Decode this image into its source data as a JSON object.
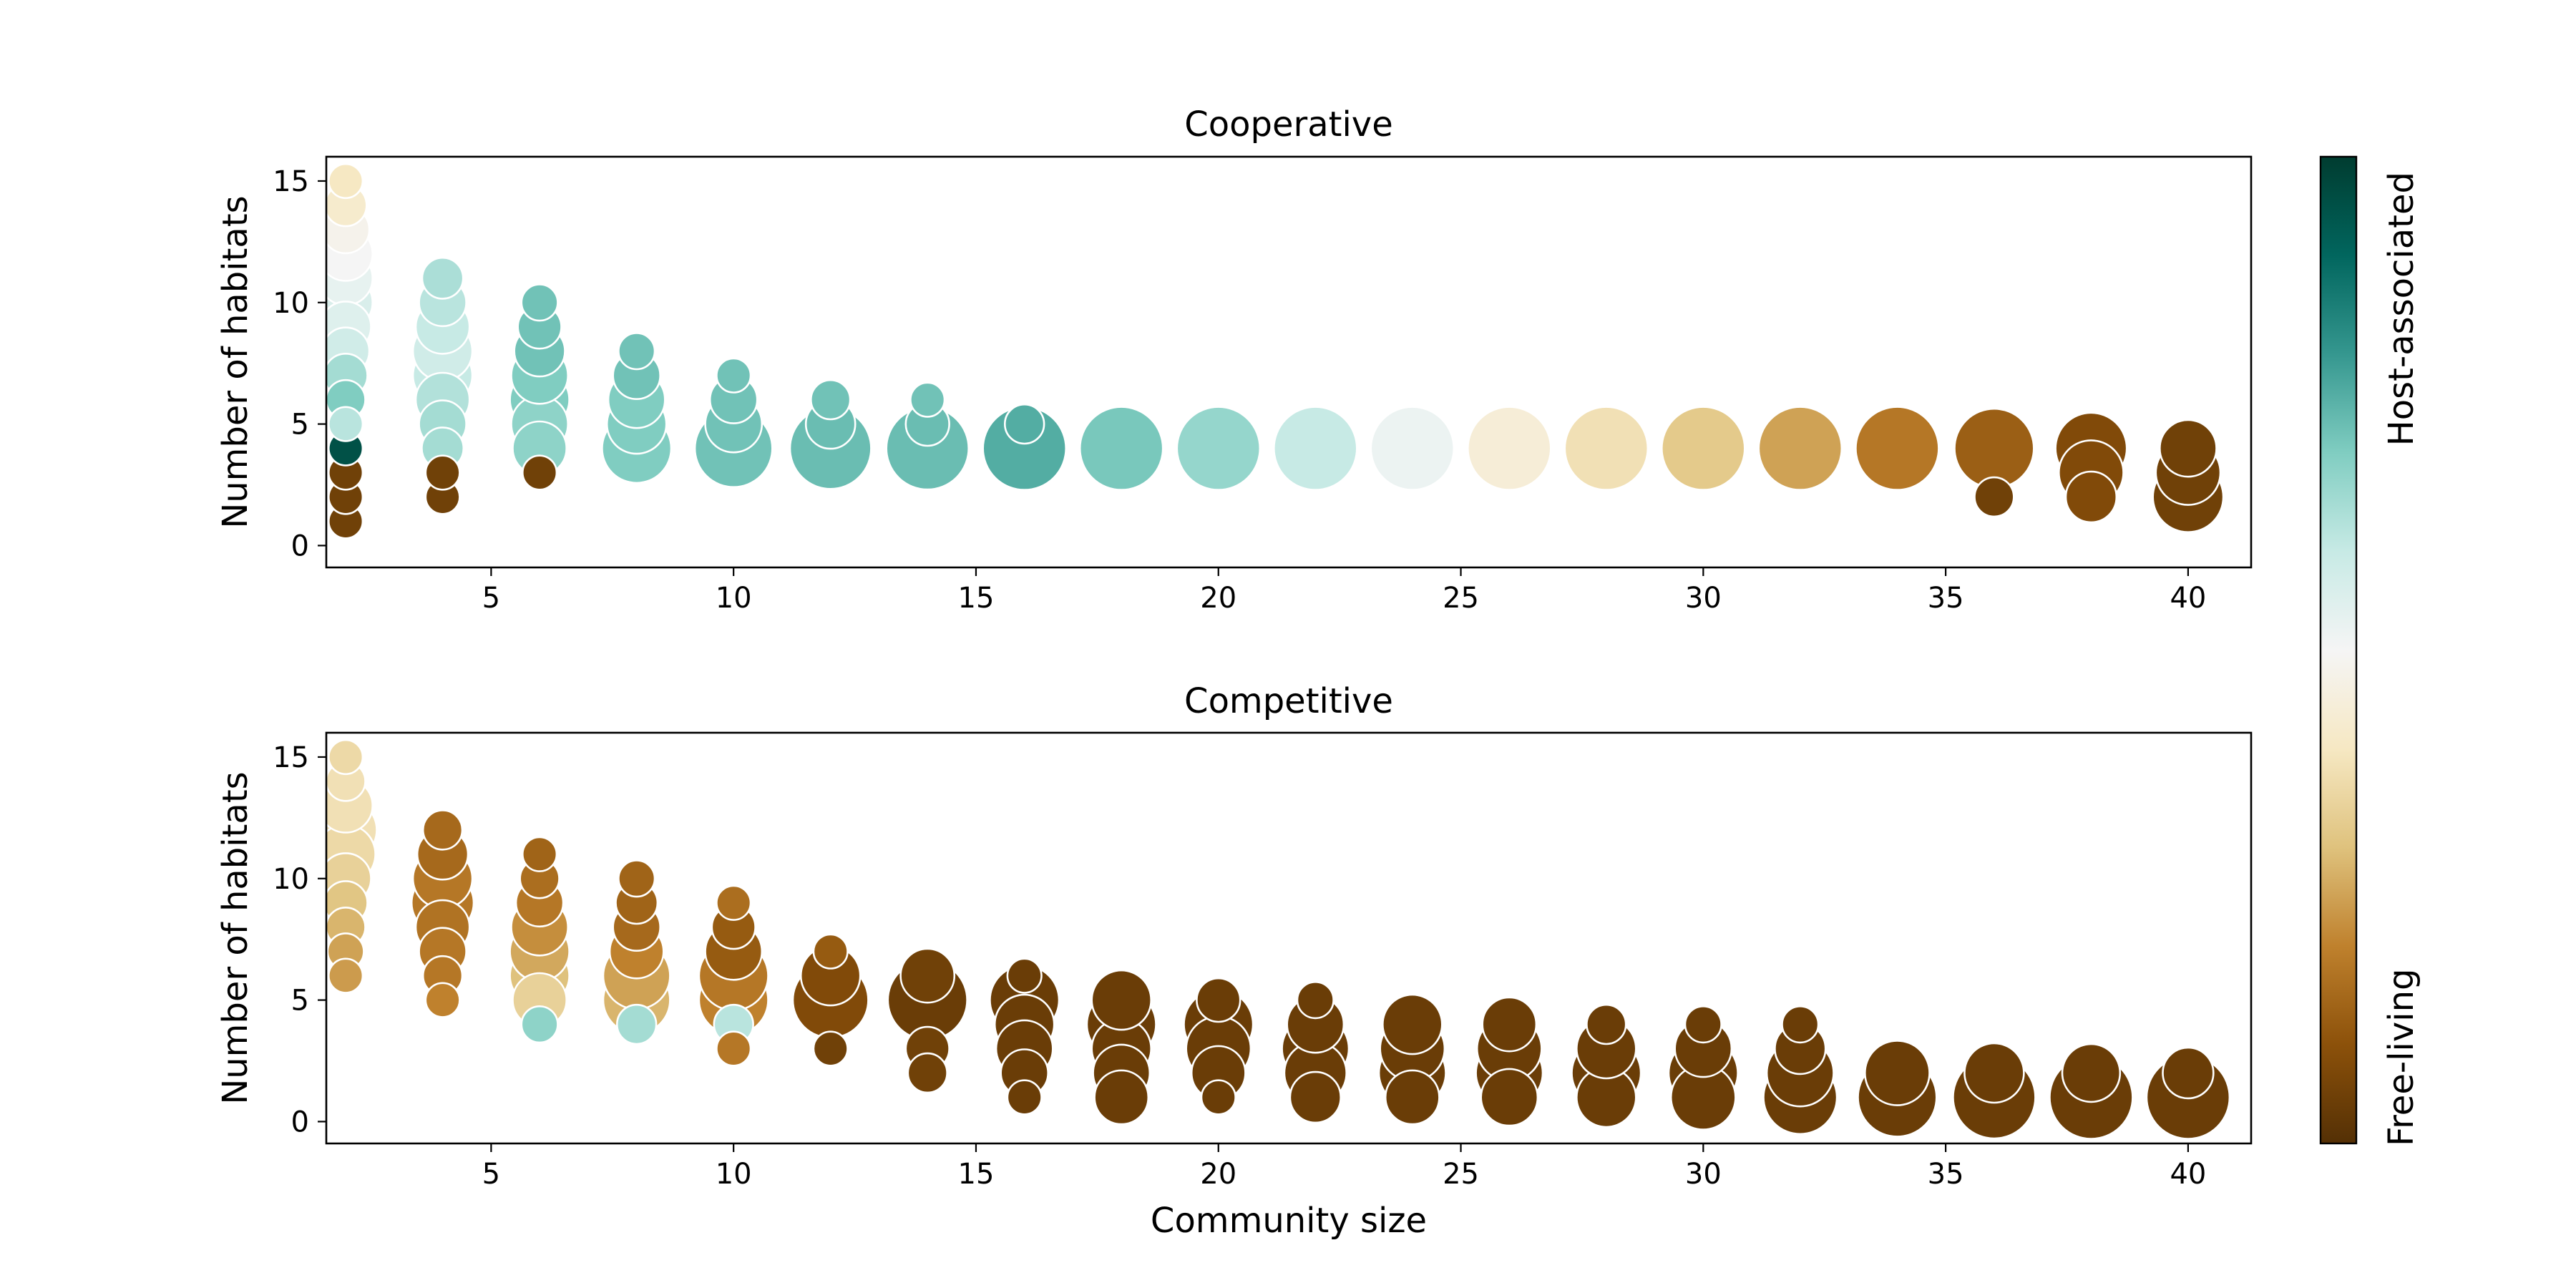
{
  "chart_data": {
    "type": "scatter",
    "xlabel": "Community size",
    "ylabel": "Number of habitats",
    "xlim": [
      1.6,
      41.3
    ],
    "ylim": [
      -0.9,
      16
    ],
    "xticks": [
      5,
      10,
      15,
      20,
      25,
      30,
      35,
      40
    ],
    "yticks": [
      0,
      5,
      10,
      15
    ],
    "colorbar": {
      "label_top": "Host-associated",
      "label_bottom": "Free-living",
      "colors": [
        "#543005",
        "#8c510a",
        "#bf812d",
        "#dfc27d",
        "#f6e8c3",
        "#f5f5f5",
        "#c7eae5",
        "#80cdc1",
        "#35978f",
        "#01665e",
        "#003c30"
      ]
    },
    "panels": [
      {
        "title": "Cooperative",
        "points": [
          {
            "x": 2,
            "y": 1,
            "s": 0.1,
            "c": 0.05
          },
          {
            "x": 2,
            "y": 2,
            "s": 0.1,
            "c": 0.05
          },
          {
            "x": 2,
            "y": 3,
            "s": 0.1,
            "c": 0.05
          },
          {
            "x": 2,
            "y": 4,
            "s": 0.1,
            "c": 0.95
          },
          {
            "x": 2,
            "y": 5,
            "s": 0.1,
            "c": 0.62
          },
          {
            "x": 2,
            "y": 6,
            "s": 0.15,
            "c": 0.7
          },
          {
            "x": 2,
            "y": 7,
            "s": 0.2,
            "c": 0.65
          },
          {
            "x": 2,
            "y": 8,
            "s": 0.25,
            "c": 0.58
          },
          {
            "x": 2,
            "y": 9,
            "s": 0.3,
            "c": 0.55
          },
          {
            "x": 2,
            "y": 10,
            "s": 0.35,
            "c": 0.56
          },
          {
            "x": 2,
            "y": 11,
            "s": 0.35,
            "c": 0.53
          },
          {
            "x": 2,
            "y": 12,
            "s": 0.35,
            "c": 0.5
          },
          {
            "x": 2,
            "y": 13,
            "s": 0.25,
            "c": 0.48
          },
          {
            "x": 2,
            "y": 14,
            "s": 0.18,
            "c": 0.42
          },
          {
            "x": 2,
            "y": 15,
            "s": 0.1,
            "c": 0.4
          },
          {
            "x": 4,
            "y": 2,
            "s": 0.1,
            "c": 0.05
          },
          {
            "x": 4,
            "y": 3,
            "s": 0.1,
            "c": 0.05
          },
          {
            "x": 4,
            "y": 4,
            "s": 0.18,
            "c": 0.65
          },
          {
            "x": 4,
            "y": 5,
            "s": 0.25,
            "c": 0.65
          },
          {
            "x": 4,
            "y": 6,
            "s": 0.35,
            "c": 0.63
          },
          {
            "x": 4,
            "y": 7,
            "s": 0.45,
            "c": 0.6
          },
          {
            "x": 4,
            "y": 8,
            "s": 0.45,
            "c": 0.58
          },
          {
            "x": 4,
            "y": 9,
            "s": 0.35,
            "c": 0.6
          },
          {
            "x": 4,
            "y": 10,
            "s": 0.25,
            "c": 0.62
          },
          {
            "x": 4,
            "y": 11,
            "s": 0.17,
            "c": 0.64
          },
          {
            "x": 6,
            "y": 3,
            "s": 0.1,
            "c": 0.05
          },
          {
            "x": 6,
            "y": 4,
            "s": 0.35,
            "c": 0.68
          },
          {
            "x": 6,
            "y": 5,
            "s": 0.4,
            "c": 0.68
          },
          {
            "x": 6,
            "y": 6,
            "s": 0.45,
            "c": 0.7
          },
          {
            "x": 6,
            "y": 7,
            "s": 0.4,
            "c": 0.7
          },
          {
            "x": 6,
            "y": 8,
            "s": 0.3,
            "c": 0.72
          },
          {
            "x": 6,
            "y": 9,
            "s": 0.2,
            "c": 0.72
          },
          {
            "x": 6,
            "y": 10,
            "s": 0.12,
            "c": 0.72
          },
          {
            "x": 8,
            "y": 4,
            "s": 0.65,
            "c": 0.7
          },
          {
            "x": 8,
            "y": 5,
            "s": 0.45,
            "c": 0.7
          },
          {
            "x": 8,
            "y": 6,
            "s": 0.4,
            "c": 0.7
          },
          {
            "x": 8,
            "y": 7,
            "s": 0.25,
            "c": 0.72
          },
          {
            "x": 8,
            "y": 8,
            "s": 0.12,
            "c": 0.72
          },
          {
            "x": 10,
            "y": 4,
            "s": 0.85,
            "c": 0.72
          },
          {
            "x": 10,
            "y": 5,
            "s": 0.4,
            "c": 0.72
          },
          {
            "x": 10,
            "y": 6,
            "s": 0.25,
            "c": 0.72
          },
          {
            "x": 10,
            "y": 7,
            "s": 0.1,
            "c": 0.72
          },
          {
            "x": 12,
            "y": 4,
            "s": 0.95,
            "c": 0.73
          },
          {
            "x": 12,
            "y": 5,
            "s": 0.28,
            "c": 0.73
          },
          {
            "x": 12,
            "y": 6,
            "s": 0.15,
            "c": 0.72
          },
          {
            "x": 14,
            "y": 4,
            "s": 0.98,
            "c": 0.73
          },
          {
            "x": 14,
            "y": 5,
            "s": 0.2,
            "c": 0.73
          },
          {
            "x": 14,
            "y": 6,
            "s": 0.1,
            "c": 0.72
          },
          {
            "x": 16,
            "y": 4,
            "s": 1.0,
            "c": 0.76
          },
          {
            "x": 16,
            "y": 5,
            "s": 0.15,
            "c": 0.76
          },
          {
            "x": 18,
            "y": 4,
            "s": 1.0,
            "c": 0.71
          },
          {
            "x": 20,
            "y": 4,
            "s": 1.0,
            "c": 0.67
          },
          {
            "x": 22,
            "y": 4,
            "s": 1.0,
            "c": 0.6
          },
          {
            "x": 24,
            "y": 4,
            "s": 1.0,
            "c": 0.52
          },
          {
            "x": 26,
            "y": 4,
            "s": 1.0,
            "c": 0.44
          },
          {
            "x": 28,
            "y": 4,
            "s": 1.0,
            "c": 0.38
          },
          {
            "x": 30,
            "y": 4,
            "s": 1.0,
            "c": 0.32
          },
          {
            "x": 32,
            "y": 4,
            "s": 1.0,
            "c": 0.25
          },
          {
            "x": 34,
            "y": 4,
            "s": 1.0,
            "c": 0.18
          },
          {
            "x": 36,
            "y": 4,
            "s": 0.9,
            "c": 0.13
          },
          {
            "x": 36,
            "y": 2,
            "s": 0.15,
            "c": 0.05
          },
          {
            "x": 38,
            "y": 2,
            "s": 0.3,
            "c": 0.08
          },
          {
            "x": 38,
            "y": 3,
            "s": 0.55,
            "c": 0.08
          },
          {
            "x": 38,
            "y": 4,
            "s": 0.7,
            "c": 0.08
          },
          {
            "x": 40,
            "y": 2,
            "s": 0.68,
            "c": 0.05
          },
          {
            "x": 40,
            "y": 3,
            "s": 0.55,
            "c": 0.05
          },
          {
            "x": 40,
            "y": 4,
            "s": 0.4,
            "c": 0.05
          }
        ]
      },
      {
        "title": "Competitive",
        "points": [
          {
            "x": 2,
            "y": 6,
            "s": 0.1,
            "c": 0.24
          },
          {
            "x": 2,
            "y": 7,
            "s": 0.12,
            "c": 0.25
          },
          {
            "x": 2,
            "y": 8,
            "s": 0.15,
            "c": 0.28
          },
          {
            "x": 2,
            "y": 9,
            "s": 0.2,
            "c": 0.31
          },
          {
            "x": 2,
            "y": 10,
            "s": 0.3,
            "c": 0.34
          },
          {
            "x": 2,
            "y": 11,
            "s": 0.45,
            "c": 0.36
          },
          {
            "x": 2,
            "y": 12,
            "s": 0.5,
            "c": 0.38
          },
          {
            "x": 2,
            "y": 13,
            "s": 0.35,
            "c": 0.38
          },
          {
            "x": 2,
            "y": 14,
            "s": 0.15,
            "c": 0.38
          },
          {
            "x": 2,
            "y": 15,
            "s": 0.1,
            "c": 0.36
          },
          {
            "x": 4,
            "y": 5,
            "s": 0.1,
            "c": 0.2
          },
          {
            "x": 4,
            "y": 6,
            "s": 0.15,
            "c": 0.18
          },
          {
            "x": 4,
            "y": 7,
            "s": 0.25,
            "c": 0.18
          },
          {
            "x": 4,
            "y": 8,
            "s": 0.35,
            "c": 0.17
          },
          {
            "x": 4,
            "y": 9,
            "s": 0.5,
            "c": 0.18
          },
          {
            "x": 4,
            "y": 10,
            "s": 0.45,
            "c": 0.18
          },
          {
            "x": 4,
            "y": 11,
            "s": 0.3,
            "c": 0.15
          },
          {
            "x": 4,
            "y": 12,
            "s": 0.15,
            "c": 0.15
          },
          {
            "x": 6,
            "y": 4,
            "s": 0.12,
            "c": 0.68
          },
          {
            "x": 6,
            "y": 5,
            "s": 0.35,
            "c": 0.34
          },
          {
            "x": 6,
            "y": 6,
            "s": 0.45,
            "c": 0.3
          },
          {
            "x": 6,
            "y": 7,
            "s": 0.45,
            "c": 0.26
          },
          {
            "x": 6,
            "y": 8,
            "s": 0.4,
            "c": 0.22
          },
          {
            "x": 6,
            "y": 9,
            "s": 0.25,
            "c": 0.18
          },
          {
            "x": 6,
            "y": 10,
            "s": 0.15,
            "c": 0.16
          },
          {
            "x": 6,
            "y": 11,
            "s": 0.1,
            "c": 0.14
          },
          {
            "x": 8,
            "y": 4,
            "s": 0.15,
            "c": 0.65
          },
          {
            "x": 8,
            "y": 5,
            "s": 0.6,
            "c": 0.28
          },
          {
            "x": 8,
            "y": 6,
            "s": 0.6,
            "c": 0.25
          },
          {
            "x": 8,
            "y": 7,
            "s": 0.35,
            "c": 0.2
          },
          {
            "x": 8,
            "y": 8,
            "s": 0.25,
            "c": 0.15
          },
          {
            "x": 8,
            "y": 9,
            "s": 0.18,
            "c": 0.14
          },
          {
            "x": 8,
            "y": 10,
            "s": 0.12,
            "c": 0.14
          },
          {
            "x": 10,
            "y": 3,
            "s": 0.1,
            "c": 0.18
          },
          {
            "x": 10,
            "y": 4,
            "s": 0.15,
            "c": 0.62
          },
          {
            "x": 10,
            "y": 5,
            "s": 0.65,
            "c": 0.2
          },
          {
            "x": 10,
            "y": 6,
            "s": 0.65,
            "c": 0.18
          },
          {
            "x": 10,
            "y": 7,
            "s": 0.4,
            "c": 0.12
          },
          {
            "x": 10,
            "y": 8,
            "s": 0.2,
            "c": 0.12
          },
          {
            "x": 10,
            "y": 9,
            "s": 0.1,
            "c": 0.16
          },
          {
            "x": 12,
            "y": 3,
            "s": 0.1,
            "c": 0.05
          },
          {
            "x": 12,
            "y": 5,
            "s": 0.8,
            "c": 0.08
          },
          {
            "x": 12,
            "y": 6,
            "s": 0.45,
            "c": 0.08
          },
          {
            "x": 12,
            "y": 7,
            "s": 0.1,
            "c": 0.12
          },
          {
            "x": 14,
            "y": 2,
            "s": 0.15,
            "c": 0.05
          },
          {
            "x": 14,
            "y": 3,
            "s": 0.2,
            "c": 0.05
          },
          {
            "x": 14,
            "y": 5,
            "s": 0.9,
            "c": 0.04
          },
          {
            "x": 14,
            "y": 6,
            "s": 0.35,
            "c": 0.05
          },
          {
            "x": 16,
            "y": 1,
            "s": 0.1,
            "c": 0.04
          },
          {
            "x": 16,
            "y": 2,
            "s": 0.25,
            "c": 0.04
          },
          {
            "x": 16,
            "y": 3,
            "s": 0.4,
            "c": 0.04
          },
          {
            "x": 16,
            "y": 4,
            "s": 0.45,
            "c": 0.04
          },
          {
            "x": 16,
            "y": 5,
            "s": 0.65,
            "c": 0.04
          },
          {
            "x": 16,
            "y": 6,
            "s": 0.1,
            "c": 0.04
          },
          {
            "x": 18,
            "y": 1,
            "s": 0.35,
            "c": 0.04
          },
          {
            "x": 18,
            "y": 2,
            "s": 0.4,
            "c": 0.04
          },
          {
            "x": 18,
            "y": 3,
            "s": 0.45,
            "c": 0.04
          },
          {
            "x": 18,
            "y": 4,
            "s": 0.65,
            "c": 0.04
          },
          {
            "x": 18,
            "y": 5,
            "s": 0.45,
            "c": 0.04
          },
          {
            "x": 20,
            "y": 1,
            "s": 0.1,
            "c": 0.04
          },
          {
            "x": 20,
            "y": 2,
            "s": 0.35,
            "c": 0.04
          },
          {
            "x": 20,
            "y": 3,
            "s": 0.55,
            "c": 0.04
          },
          {
            "x": 20,
            "y": 4,
            "s": 0.65,
            "c": 0.04
          },
          {
            "x": 20,
            "y": 5,
            "s": 0.2,
            "c": 0.04
          },
          {
            "x": 22,
            "y": 1,
            "s": 0.3,
            "c": 0.04
          },
          {
            "x": 22,
            "y": 2,
            "s": 0.5,
            "c": 0.04
          },
          {
            "x": 22,
            "y": 3,
            "s": 0.6,
            "c": 0.04
          },
          {
            "x": 22,
            "y": 4,
            "s": 0.4,
            "c": 0.04
          },
          {
            "x": 22,
            "y": 5,
            "s": 0.12,
            "c": 0.04
          },
          {
            "x": 24,
            "y": 1,
            "s": 0.35,
            "c": 0.04
          },
          {
            "x": 24,
            "y": 2,
            "s": 0.6,
            "c": 0.04
          },
          {
            "x": 24,
            "y": 3,
            "s": 0.55,
            "c": 0.04
          },
          {
            "x": 24,
            "y": 4,
            "s": 0.45,
            "c": 0.04
          },
          {
            "x": 26,
            "y": 1,
            "s": 0.4,
            "c": 0.04
          },
          {
            "x": 26,
            "y": 2,
            "s": 0.6,
            "c": 0.04
          },
          {
            "x": 26,
            "y": 3,
            "s": 0.55,
            "c": 0.04
          },
          {
            "x": 26,
            "y": 4,
            "s": 0.35,
            "c": 0.04
          },
          {
            "x": 28,
            "y": 1,
            "s": 0.45,
            "c": 0.04
          },
          {
            "x": 28,
            "y": 2,
            "s": 0.65,
            "c": 0.04
          },
          {
            "x": 28,
            "y": 3,
            "s": 0.45,
            "c": 0.04
          },
          {
            "x": 28,
            "y": 4,
            "s": 0.15,
            "c": 0.04
          },
          {
            "x": 30,
            "y": 1,
            "s": 0.55,
            "c": 0.04
          },
          {
            "x": 30,
            "y": 2,
            "s": 0.65,
            "c": 0.04
          },
          {
            "x": 30,
            "y": 3,
            "s": 0.4,
            "c": 0.04
          },
          {
            "x": 30,
            "y": 4,
            "s": 0.12,
            "c": 0.04
          },
          {
            "x": 32,
            "y": 1,
            "s": 0.75,
            "c": 0.04
          },
          {
            "x": 32,
            "y": 2,
            "s": 0.6,
            "c": 0.04
          },
          {
            "x": 32,
            "y": 3,
            "s": 0.3,
            "c": 0.04
          },
          {
            "x": 32,
            "y": 4,
            "s": 0.12,
            "c": 0.04
          },
          {
            "x": 34,
            "y": 1,
            "s": 0.88,
            "c": 0.04
          },
          {
            "x": 34,
            "y": 2,
            "s": 0.55,
            "c": 0.04
          },
          {
            "x": 36,
            "y": 1,
            "s": 0.98,
            "c": 0.04
          },
          {
            "x": 36,
            "y": 2,
            "s": 0.45,
            "c": 0.04
          },
          {
            "x": 38,
            "y": 1,
            "s": 1.0,
            "c": 0.04
          },
          {
            "x": 38,
            "y": 2,
            "s": 0.42,
            "c": 0.04
          },
          {
            "x": 40,
            "y": 1,
            "s": 1.0,
            "c": 0.04
          },
          {
            "x": 40,
            "y": 2,
            "s": 0.3,
            "c": 0.04
          }
        ]
      }
    ]
  }
}
